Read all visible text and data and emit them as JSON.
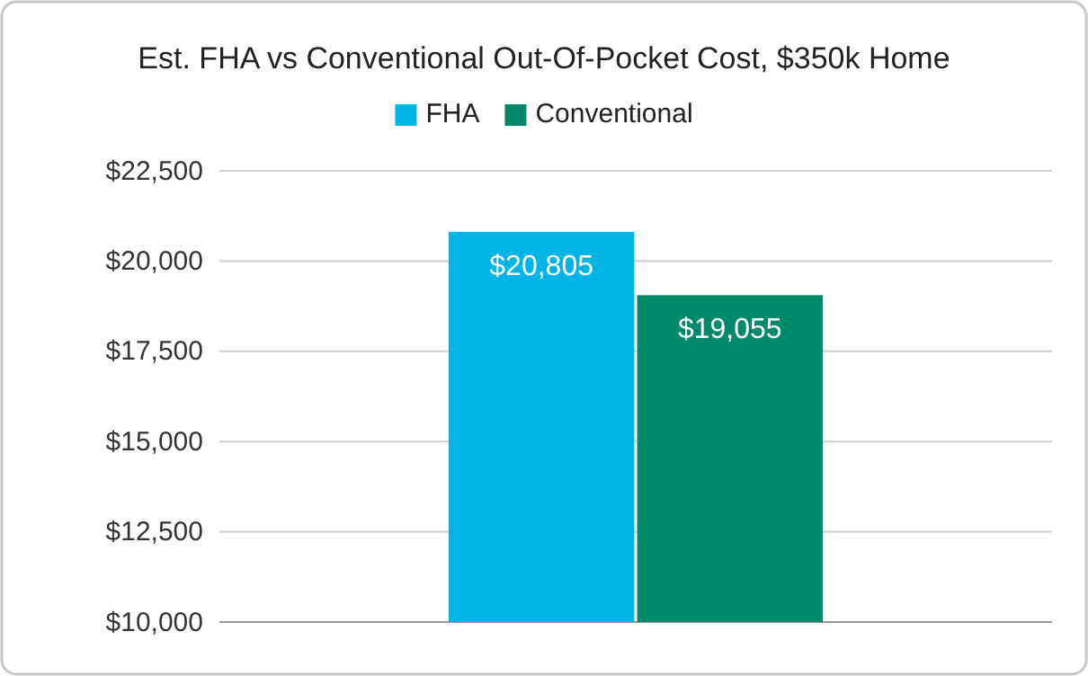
{
  "chart_data": {
    "type": "bar",
    "title": "Est. FHA vs Conventional Out-Of-Pocket Cost, $350k Home",
    "categories": [
      null
    ],
    "series": [
      {
        "name": "FHA",
        "color": "#00b4e6",
        "values": [
          20805
        ],
        "value_labels": [
          "$20,805"
        ]
      },
      {
        "name": "Conventional",
        "color": "#00896b",
        "values": [
          19055
        ],
        "value_labels": [
          "$19,055"
        ]
      }
    ],
    "ylim": [
      10000,
      22500
    ],
    "yticks": [
      {
        "value": 10000,
        "label": "$10,000"
      },
      {
        "value": 12500,
        "label": "$12,500"
      },
      {
        "value": 15000,
        "label": "$15,000"
      },
      {
        "value": 17500,
        "label": "$17,500"
      },
      {
        "value": 20000,
        "label": "$20,000"
      },
      {
        "value": 22500,
        "label": "$22,500"
      }
    ],
    "grid": "y",
    "legend": "top"
  }
}
